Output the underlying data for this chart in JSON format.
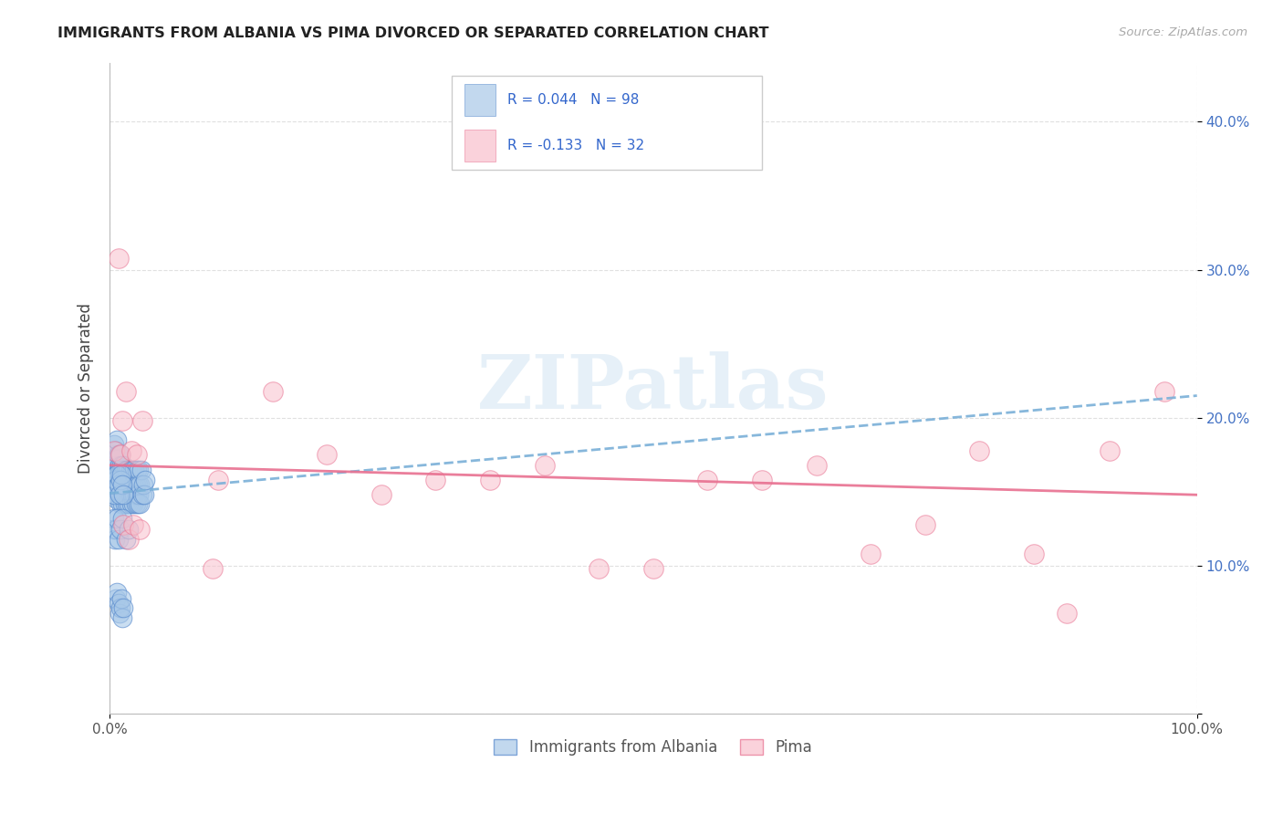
{
  "title": "IMMIGRANTS FROM ALBANIA VS PIMA DIVORCED OR SEPARATED CORRELATION CHART",
  "source": "Source: ZipAtlas.com",
  "ylabel": "Divorced or Separated",
  "xlim": [
    0.0,
    1.0
  ],
  "ylim": [
    0.0,
    0.44
  ],
  "yticks": [
    0.0,
    0.1,
    0.2,
    0.3,
    0.4
  ],
  "yticklabels_right": [
    "",
    "10.0%",
    "20.0%",
    "30.0%",
    "40.0%"
  ],
  "blue_color": "#a8c8e8",
  "blue_edge_color": "#5588cc",
  "pink_color": "#f8c0cc",
  "pink_edge_color": "#e87090",
  "trendline_blue_color": "#7ab0d8",
  "trendline_pink_color": "#e87090",
  "tick_color": "#4472c4",
  "grid_color": "#cccccc",
  "watermark_color": "#c8dff0",
  "legend_label1": "Immigrants from Albania",
  "legend_label2": "Pima",
  "legend_r1": "R = 0.044",
  "legend_n1": "N = 98",
  "legend_r2": "R = -0.133",
  "legend_n2": "N = 32",
  "blue_x": [
    0.002,
    0.003,
    0.003,
    0.004,
    0.004,
    0.004,
    0.005,
    0.005,
    0.005,
    0.006,
    0.006,
    0.006,
    0.007,
    0.007,
    0.007,
    0.007,
    0.008,
    0.008,
    0.008,
    0.009,
    0.009,
    0.009,
    0.01,
    0.01,
    0.01,
    0.01,
    0.011,
    0.011,
    0.011,
    0.012,
    0.012,
    0.012,
    0.013,
    0.013,
    0.013,
    0.014,
    0.014,
    0.015,
    0.015,
    0.016,
    0.016,
    0.017,
    0.017,
    0.018,
    0.018,
    0.019,
    0.019,
    0.02,
    0.02,
    0.021,
    0.021,
    0.022,
    0.022,
    0.023,
    0.023,
    0.024,
    0.024,
    0.025,
    0.025,
    0.026,
    0.026,
    0.027,
    0.027,
    0.028,
    0.028,
    0.029,
    0.03,
    0.031,
    0.032,
    0.033,
    0.004,
    0.005,
    0.006,
    0.007,
    0.008,
    0.009,
    0.01,
    0.011,
    0.012,
    0.013,
    0.003,
    0.004,
    0.005,
    0.006,
    0.007,
    0.008,
    0.01,
    0.012,
    0.015,
    0.018,
    0.006,
    0.007,
    0.008,
    0.009,
    0.01,
    0.011,
    0.012,
    0.013
  ],
  "blue_y": [
    0.155,
    0.162,
    0.175,
    0.148,
    0.168,
    0.182,
    0.158,
    0.172,
    0.165,
    0.152,
    0.168,
    0.178,
    0.145,
    0.162,
    0.172,
    0.185,
    0.155,
    0.165,
    0.175,
    0.148,
    0.158,
    0.168,
    0.142,
    0.155,
    0.165,
    0.175,
    0.148,
    0.158,
    0.168,
    0.142,
    0.155,
    0.165,
    0.148,
    0.158,
    0.168,
    0.142,
    0.155,
    0.165,
    0.158,
    0.142,
    0.155,
    0.165,
    0.158,
    0.142,
    0.155,
    0.165,
    0.148,
    0.142,
    0.155,
    0.165,
    0.148,
    0.142,
    0.155,
    0.165,
    0.148,
    0.142,
    0.155,
    0.165,
    0.148,
    0.142,
    0.155,
    0.165,
    0.148,
    0.142,
    0.155,
    0.165,
    0.148,
    0.155,
    0.148,
    0.158,
    0.148,
    0.155,
    0.158,
    0.162,
    0.155,
    0.148,
    0.158,
    0.162,
    0.155,
    0.148,
    0.125,
    0.132,
    0.118,
    0.125,
    0.132,
    0.118,
    0.125,
    0.132,
    0.118,
    0.125,
    0.078,
    0.082,
    0.075,
    0.068,
    0.072,
    0.078,
    0.065,
    0.072
  ],
  "pink_x": [
    0.004,
    0.008,
    0.01,
    0.012,
    0.013,
    0.015,
    0.018,
    0.02,
    0.022,
    0.025,
    0.028,
    0.03,
    0.095,
    0.1,
    0.15,
    0.2,
    0.25,
    0.3,
    0.35,
    0.4,
    0.45,
    0.5,
    0.55,
    0.6,
    0.65,
    0.7,
    0.75,
    0.8,
    0.85,
    0.88,
    0.92,
    0.97
  ],
  "pink_y": [
    0.178,
    0.308,
    0.175,
    0.198,
    0.128,
    0.218,
    0.118,
    0.178,
    0.128,
    0.175,
    0.125,
    0.198,
    0.098,
    0.158,
    0.218,
    0.175,
    0.148,
    0.158,
    0.158,
    0.168,
    0.098,
    0.098,
    0.158,
    0.158,
    0.168,
    0.108,
    0.128,
    0.178,
    0.108,
    0.068,
    0.178,
    0.218
  ],
  "trendline_blue_start_y": 0.149,
  "trendline_blue_end_y": 0.215,
  "trendline_pink_start_y": 0.168,
  "trendline_pink_end_y": 0.148
}
